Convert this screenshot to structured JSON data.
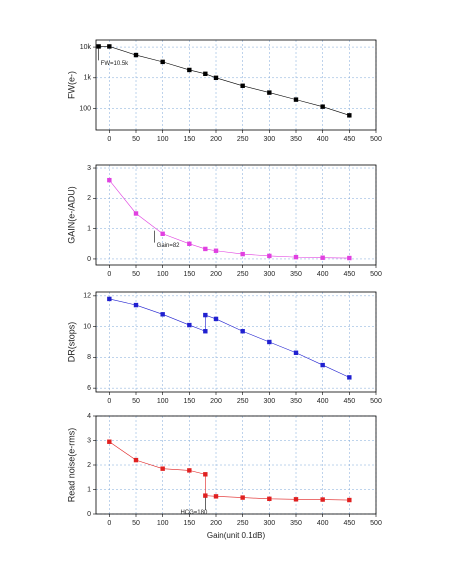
{
  "chart_data": [
    {
      "type": "line",
      "ylabel": "FW(e-)",
      "log_y": true,
      "color": "#000000",
      "grid": true,
      "x": [
        -20,
        0,
        50,
        100,
        150,
        180,
        200,
        250,
        300,
        350,
        400,
        450
      ],
      "values": [
        10500,
        10500,
        5500,
        3300,
        1800,
        1350,
        1000,
        550,
        330,
        195,
        115,
        60
      ],
      "xlim": [
        -25,
        500
      ],
      "xticks": [
        0,
        50,
        100,
        150,
        200,
        250,
        300,
        350,
        400,
        450,
        500
      ],
      "ylim": [
        20,
        17000
      ],
      "yticks": [
        {
          "value": 10000,
          "label": "10k"
        },
        {
          "value": 1000,
          "label": "1k"
        },
        100
      ],
      "annotations": [
        {
          "text": "FW=10.5k",
          "x": -20,
          "y": 10500
        }
      ]
    },
    {
      "type": "line",
      "ylabel": "GAIN(e-/ADU)",
      "color": "#e040e0",
      "grid": true,
      "x": [
        0,
        50,
        100,
        150,
        180,
        200,
        250,
        300,
        350,
        400,
        450
      ],
      "values": [
        2.6,
        1.5,
        0.83,
        0.5,
        0.33,
        0.27,
        0.16,
        0.1,
        0.06,
        0.04,
        0.03
      ],
      "xlim": [
        -25,
        500
      ],
      "xticks": [
        0,
        50,
        100,
        150,
        200,
        250,
        300,
        350,
        400,
        450,
        500
      ],
      "ylim": [
        -0.2,
        3.1
      ],
      "yticks": [
        0,
        1,
        2,
        3
      ],
      "annotations": [
        {
          "text": "Gain=82",
          "x": 85,
          "y": 1
        }
      ]
    },
    {
      "type": "line",
      "ylabel": "DR(stops)",
      "color": "#2020d0",
      "grid": true,
      "x": [
        0,
        50,
        100,
        150,
        180,
        180,
        200,
        250,
        300,
        350,
        400,
        450
      ],
      "values": [
        11.8,
        11.4,
        10.8,
        10.1,
        9.7,
        10.75,
        10.5,
        9.7,
        9.0,
        8.3,
        7.5,
        6.7
      ],
      "xlim": [
        -25,
        500
      ],
      "xticks": [
        0,
        50,
        100,
        150,
        200,
        250,
        300,
        350,
        400,
        450,
        500
      ],
      "ylim": [
        5.75,
        12.25
      ],
      "yticks": [
        6,
        8,
        10,
        12
      ]
    },
    {
      "type": "line",
      "ylabel": "Read noise(e-rms)",
      "xlabel": "Gain(unit 0.1dB)",
      "color": "#e02020",
      "grid": true,
      "x": [
        0,
        50,
        100,
        150,
        180,
        180,
        200,
        250,
        300,
        350,
        400,
        450
      ],
      "values": [
        2.95,
        2.2,
        1.85,
        1.78,
        1.62,
        0.75,
        0.72,
        0.67,
        0.62,
        0.6,
        0.59,
        0.57
      ],
      "xlim": [
        -25,
        500
      ],
      "xticks": [
        0,
        50,
        100,
        150,
        200,
        250,
        300,
        350,
        400,
        450,
        500
      ],
      "ylim": [
        0,
        4
      ],
      "yticks": [
        0,
        1,
        2,
        3,
        4
      ],
      "annotations": [
        {
          "text": "HCG=180",
          "x": 180,
          "y": 0.75
        }
      ]
    }
  ]
}
